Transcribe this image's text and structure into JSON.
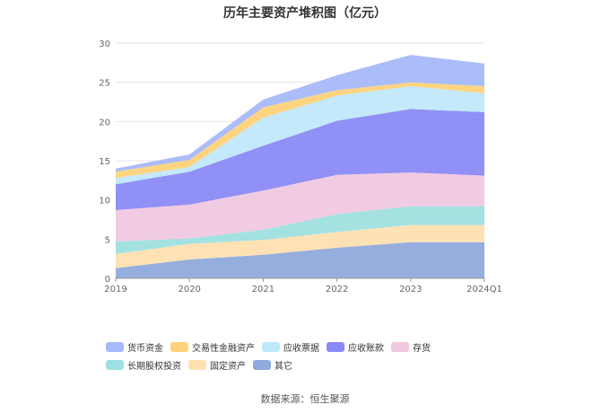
{
  "chart_data": {
    "type": "area",
    "title": "历年主要资产堆积图（亿元）",
    "categories": [
      "2019",
      "2020",
      "2021",
      "2022",
      "2023",
      "2024Q1"
    ],
    "ylim": [
      0,
      30
    ],
    "yticks": [
      "0",
      "5",
      "10",
      "15",
      "20",
      "25",
      "30"
    ],
    "stacked": true,
    "series": [
      {
        "name": "其它",
        "color": "#8faadc",
        "values": [
          1.3,
          2.4,
          3.0,
          3.9,
          4.6,
          4.6
        ]
      },
      {
        "name": "固定资产",
        "color": "#ffe0b0",
        "values": [
          1.8,
          2.0,
          1.9,
          2.0,
          2.2,
          2.2
        ]
      },
      {
        "name": "长期股权投资",
        "color": "#9fe0e0",
        "values": [
          1.6,
          0.7,
          1.3,
          2.3,
          2.4,
          2.4
        ]
      },
      {
        "name": "存货",
        "color": "#f0c8e0",
        "values": [
          4.0,
          4.3,
          5.0,
          5.0,
          4.3,
          3.9
        ]
      },
      {
        "name": "应收账款",
        "color": "#8a8af5",
        "values": [
          3.3,
          4.2,
          5.7,
          6.9,
          8.1,
          8.1
        ]
      },
      {
        "name": "应收票据",
        "color": "#c0e8fa",
        "values": [
          0.8,
          0.6,
          3.6,
          3.2,
          2.9,
          2.4
        ]
      },
      {
        "name": "交易性金融资产",
        "color": "#ffd27a",
        "values": [
          0.8,
          0.9,
          1.3,
          0.7,
          0.5,
          0.9
        ]
      },
      {
        "name": "货币资金",
        "color": "#a6b9f8",
        "values": [
          0.4,
          0.7,
          1.0,
          1.9,
          3.5,
          2.9
        ]
      }
    ],
    "legend_order": [
      "货币资金",
      "交易性金融资产",
      "应收票据",
      "应收账款",
      "存货",
      "长期股权投资",
      "固定资产",
      "其它"
    ],
    "legend_position": "bottom"
  },
  "source_text": "数据来源：恒生聚源"
}
